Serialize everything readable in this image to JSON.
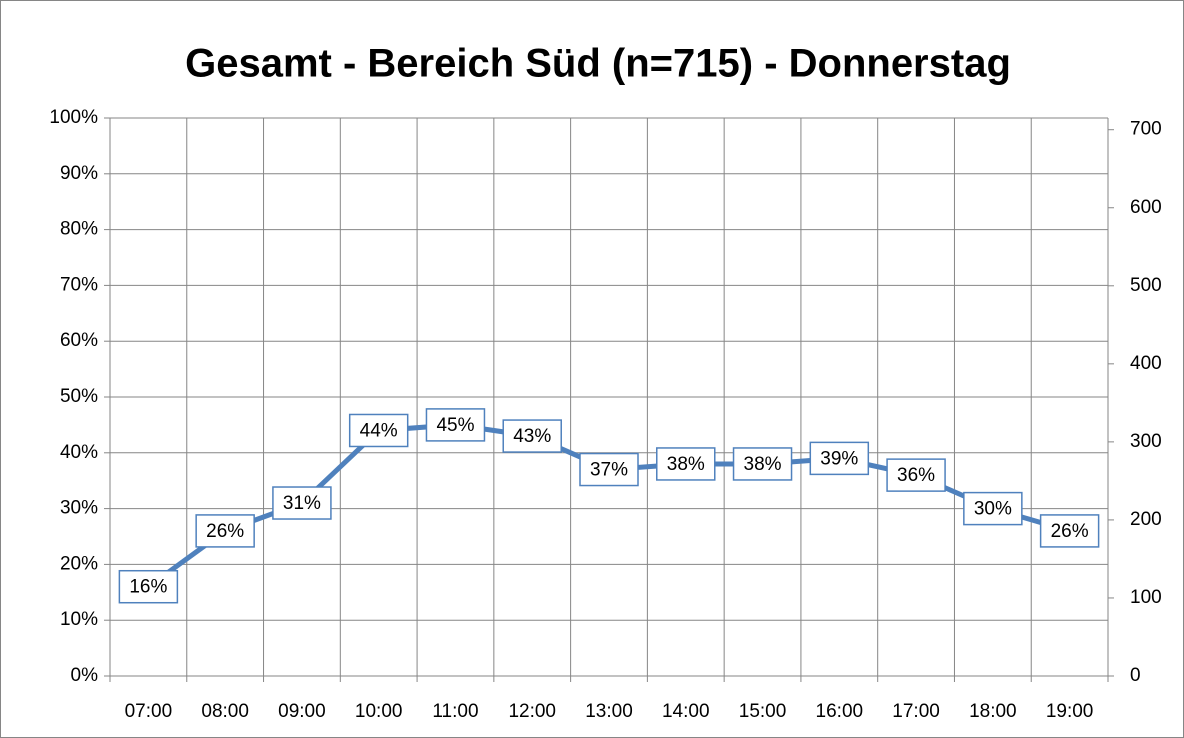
{
  "chart_data": {
    "type": "line",
    "title": "Gesamt - Bereich Süd (n=715) - Donnerstag",
    "categories": [
      "07:00",
      "08:00",
      "09:00",
      "10:00",
      "11:00",
      "12:00",
      "13:00",
      "14:00",
      "15:00",
      "16:00",
      "17:00",
      "18:00",
      "19:00"
    ],
    "values": [
      16,
      26,
      31,
      44,
      45,
      43,
      37,
      38,
      38,
      39,
      36,
      30,
      26
    ],
    "value_labels": [
      "16%",
      "26%",
      "31%",
      "44%",
      "45%",
      "43%",
      "37%",
      "38%",
      "38%",
      "39%",
      "36%",
      "30%",
      "26%"
    ],
    "color": "#4f81bd",
    "ylim": [
      0,
      100
    ],
    "yticks": [
      {
        "value": 0,
        "label": "0%"
      },
      {
        "value": 10,
        "label": "10%"
      },
      {
        "value": 20,
        "label": "20%"
      },
      {
        "value": 30,
        "label": "30%"
      },
      {
        "value": 40,
        "label": "40%"
      },
      {
        "value": 50,
        "label": "50%"
      },
      {
        "value": 60,
        "label": "60%"
      },
      {
        "value": 70,
        "label": "70%"
      },
      {
        "value": 80,
        "label": "80%"
      },
      {
        "value": 90,
        "label": "90%"
      },
      {
        "value": 100,
        "label": "100%"
      }
    ],
    "y2lim": [
      0,
      715
    ],
    "y2ticks": [
      0,
      100,
      200,
      300,
      400,
      500,
      600,
      700
    ],
    "grid": true
  }
}
